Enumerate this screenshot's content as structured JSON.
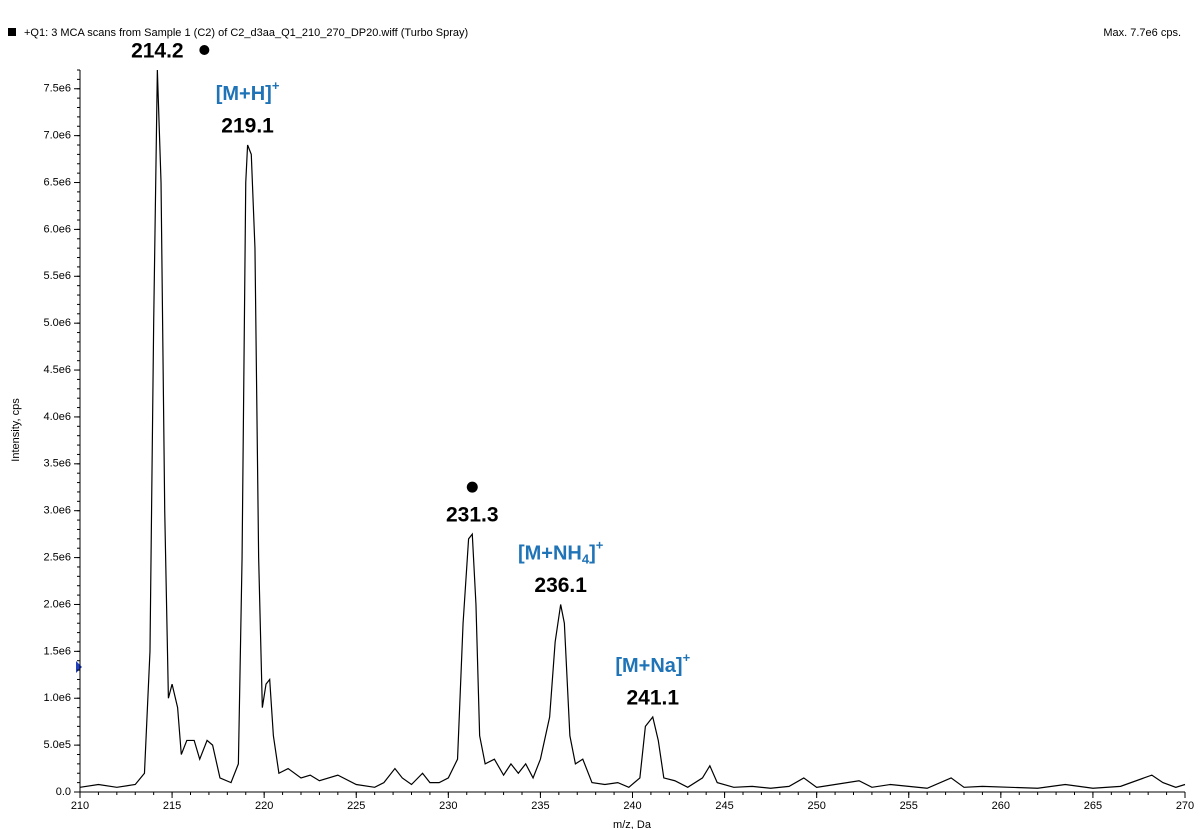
{
  "chart_data": {
    "type": "line",
    "title": "+Q1: 3 MCA scans from Sample 1 (C2) of C2_d3aa_Q1_210_270_DP20.wiff (Turbo Spray)",
    "subtitle": "Max. 7.7e6 cps.",
    "x_label": "m/z, Da",
    "y_label": "Intensity, cps",
    "xlim": [
      210,
      270
    ],
    "ylim": [
      0,
      7700000
    ],
    "xticks": [
      210,
      215,
      220,
      225,
      230,
      235,
      240,
      245,
      250,
      255,
      260,
      265,
      270
    ],
    "yticks": [
      {
        "value": 0,
        "label": "0.0"
      },
      {
        "value": 500000,
        "label": "5.0e5"
      },
      {
        "value": 1000000,
        "label": "1.0e6"
      },
      {
        "value": 1500000,
        "label": "1.5e6"
      },
      {
        "value": 2000000,
        "label": "2.0e6"
      },
      {
        "value": 2500000,
        "label": "2.5e6"
      },
      {
        "value": 3000000,
        "label": "3.0e6"
      },
      {
        "value": 3500000,
        "label": "3.5e6"
      },
      {
        "value": 4000000,
        "label": "4.0e6"
      },
      {
        "value": 4500000,
        "label": "4.5e6"
      },
      {
        "value": 5000000,
        "label": "5.0e6"
      },
      {
        "value": 5500000,
        "label": "5.5e6"
      },
      {
        "value": 6000000,
        "label": "6.0e6"
      },
      {
        "value": 6500000,
        "label": "6.5e6"
      },
      {
        "value": 7000000,
        "label": "7.0e6"
      },
      {
        "value": 7500000,
        "label": "7.5e6"
      }
    ],
    "color": "#000000",
    "x": [
      210,
      211,
      212,
      213,
      213.5,
      213.8,
      214.0,
      214.2,
      214.4,
      214.6,
      214.8,
      215.0,
      215.3,
      215.5,
      215.8,
      216.2,
      216.5,
      216.9,
      217.2,
      217.6,
      218.2,
      218.6,
      218.8,
      219.0,
      219.1,
      219.3,
      219.5,
      219.7,
      219.9,
      220.1,
      220.3,
      220.5,
      220.8,
      221.3,
      222,
      222.5,
      223,
      224,
      225,
      226,
      226.5,
      227.1,
      227.5,
      228,
      228.6,
      229,
      229.5,
      230,
      230.5,
      230.8,
      231.1,
      231.3,
      231.5,
      231.7,
      232,
      232.5,
      233,
      233.4,
      233.8,
      234.2,
      234.6,
      235,
      235.5,
      235.8,
      236.1,
      236.3,
      236.6,
      236.9,
      237.3,
      237.8,
      238.5,
      239.2,
      239.8,
      240.4,
      240.7,
      241.1,
      241.4,
      241.7,
      242.3,
      243,
      243.8,
      244.2,
      244.6,
      245.5,
      246.5,
      247.5,
      248.5,
      249.3,
      250,
      251,
      252.3,
      253,
      254,
      255,
      256,
      257.3,
      258,
      259,
      260.5,
      262,
      263.5,
      265,
      266.5,
      268.2,
      268.8,
      269.5,
      270
    ],
    "values": [
      50000,
      80000,
      50000,
      80000,
      200000,
      1500000,
      5000000,
      7700000,
      6500000,
      3000000,
      1000000,
      1150000,
      900000,
      400000,
      550000,
      550000,
      350000,
      550000,
      500000,
      150000,
      100000,
      300000,
      2500000,
      6500000,
      6900000,
      6800000,
      5800000,
      2500000,
      900000,
      1150000,
      1200000,
      600000,
      200000,
      250000,
      150000,
      180000,
      120000,
      180000,
      80000,
      50000,
      100000,
      250000,
      150000,
      80000,
      200000,
      100000,
      100000,
      150000,
      350000,
      1800000,
      2700000,
      2750000,
      2000000,
      600000,
      300000,
      350000,
      180000,
      300000,
      200000,
      300000,
      150000,
      350000,
      800000,
      1600000,
      2000000,
      1800000,
      600000,
      300000,
      350000,
      100000,
      80000,
      100000,
      50000,
      150000,
      700000,
      800000,
      550000,
      150000,
      120000,
      50000,
      150000,
      280000,
      100000,
      50000,
      60000,
      40000,
      60000,
      150000,
      50000,
      80000,
      120000,
      50000,
      80000,
      60000,
      40000,
      150000,
      50000,
      60000,
      50000,
      40000,
      80000,
      40000,
      60000,
      180000,
      100000,
      50000,
      80000
    ],
    "annotations": [
      {
        "x": 214.2,
        "marker": "dot-right"
      },
      {
        "x": 219.1,
        "adduct": [
          {
            "text": "[M+H]"
          },
          {
            "text": "+",
            "style": "sup"
          }
        ]
      },
      {
        "x": 231.3,
        "marker": "dot-above"
      },
      {
        "x": 236.1,
        "adduct": [
          {
            "text": "[M+NH"
          },
          {
            "text": "4",
            "style": "sub"
          },
          {
            "text": "]"
          },
          {
            "text": "+",
            "style": "sup"
          }
        ]
      },
      {
        "x": 241.1,
        "adduct": [
          {
            "text": "[M+Na]"
          },
          {
            "text": "+",
            "style": "sup"
          }
        ]
      }
    ]
  }
}
